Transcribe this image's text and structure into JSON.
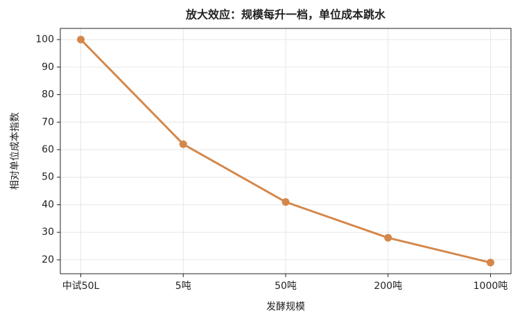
{
  "chart_data": {
    "type": "line",
    "title": "放大效应：规模每升一档，单位成本跳水",
    "x_label": "发酵规模",
    "y_label": "相对单位成本指数",
    "categories": [
      "中试50L",
      "5吨",
      "50吨",
      "200吨",
      "1000吨"
    ],
    "values": [
      100,
      62,
      41,
      28,
      19
    ],
    "color": "#d4874a",
    "ylim": [
      14.95,
      104.05
    ],
    "yticks": [
      20,
      30,
      40,
      50,
      60,
      70,
      80,
      90,
      100
    ],
    "grid": true
  }
}
